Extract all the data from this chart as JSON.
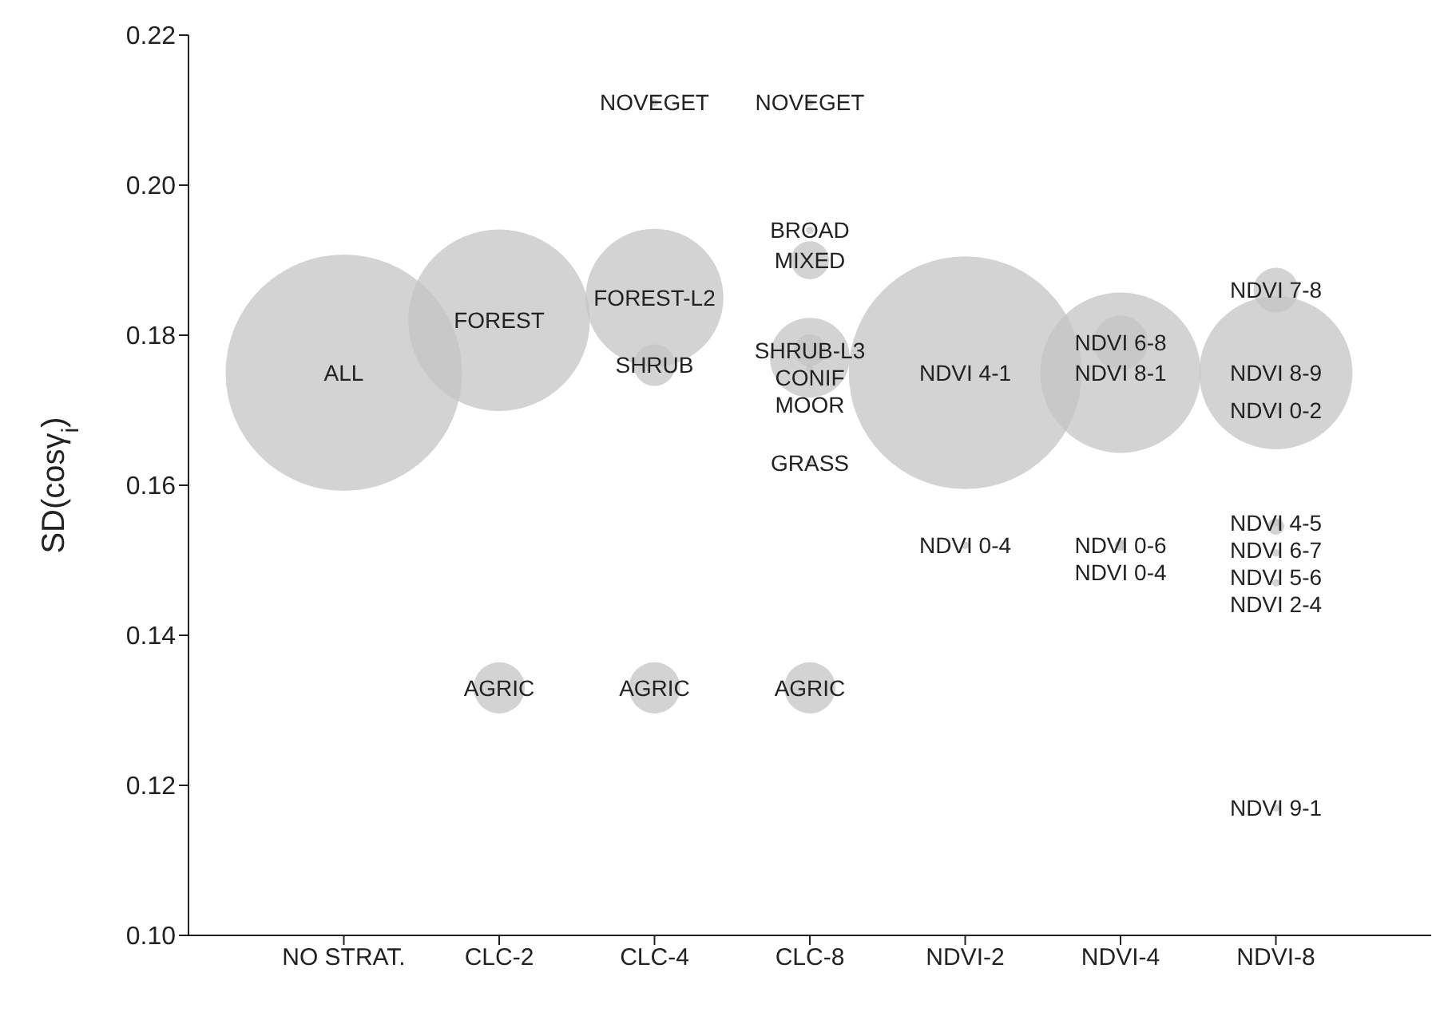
{
  "chart_data": {
    "type": "bubble",
    "ylabel": "SD(cosγ$_{i}$)",
    "categories": [
      "NO STRAT.",
      "CLC-2",
      "CLC-4",
      "CLC-8",
      "NDVI-2",
      "NDVI-4",
      "NDVI-8"
    ],
    "ylim": [
      0.1,
      0.22
    ],
    "yticks": [
      {
        "value": 0.1,
        "label": "0.10"
      },
      0.12,
      0.14,
      0.16,
      0.18,
      {
        "value": 0.2,
        "label": "0.20"
      },
      0.22
    ],
    "series": [
      {
        "color": "#c4c4c4",
        "x": [
          "NO STRAT.",
          "CLC-2",
          "CLC-2",
          "CLC-4",
          "CLC-4",
          "CLC-4",
          "CLC-4",
          "CLC-8",
          "CLC-8",
          "CLC-8",
          "CLC-8",
          "CLC-8",
          "CLC-8",
          "CLC-8",
          "CLC-8",
          "NDVI-2",
          "NDVI-2",
          "NDVI-4",
          "NDVI-4",
          "NDVI-4",
          "NDVI-4",
          "NDVI-8",
          "NDVI-8",
          "NDVI-8",
          "NDVI-8",
          "NDVI-8",
          "NDVI-8",
          "NDVI-8",
          "NDVI-8"
        ],
        "values": [
          0.175,
          0.182,
          0.133,
          0.211,
          0.185,
          0.176,
          0.133,
          0.211,
          0.194,
          0.19,
          0.178,
          0.177,
          0.1755,
          0.163,
          0.133,
          0.175,
          0.152,
          0.179,
          0.175,
          0.152,
          0.152,
          0.186,
          0.175,
          0.17,
          0.155,
          0.1545,
          0.151,
          0.147,
          0.117
        ],
        "sizes": [
          1,
          0.59,
          0.047,
          0.001,
          0.34,
          0.031,
          0.047,
          0.001,
          0.001,
          0.026,
          0.018,
          0.114,
          0.001,
          0.001,
          0.047,
          0.97,
          0.001,
          0.053,
          0.46,
          0.002,
          0.002,
          0.036,
          0.42,
          0.001,
          0.001,
          0.005,
          0.001,
          0.001,
          0.001
        ],
        "value_labels": [
          "ALL",
          "FOREST",
          "AGRIC",
          "NOVEGET",
          "FOREST-L2",
          "SHRUB",
          "AGRIC",
          "NOVEGET",
          "BROAD",
          "MIXED",
          "SHRUB-L3",
          "CONIF",
          "MOOR",
          "GRASS",
          "AGRIC",
          "NDVI 4-1",
          "NDVI 0-4",
          "NDVI 6-8",
          "NDVI 8-1",
          "NDVI 0-6",
          "NDVI 0-4",
          "NDVI 7-8",
          "NDVI 8-9",
          "NDVI 0-2",
          "NDVI 4-5",
          "NDVI 6-7",
          "NDVI 5-6",
          "NDVI 2-4",
          "NDVI 9-1"
        ]
      }
    ]
  }
}
